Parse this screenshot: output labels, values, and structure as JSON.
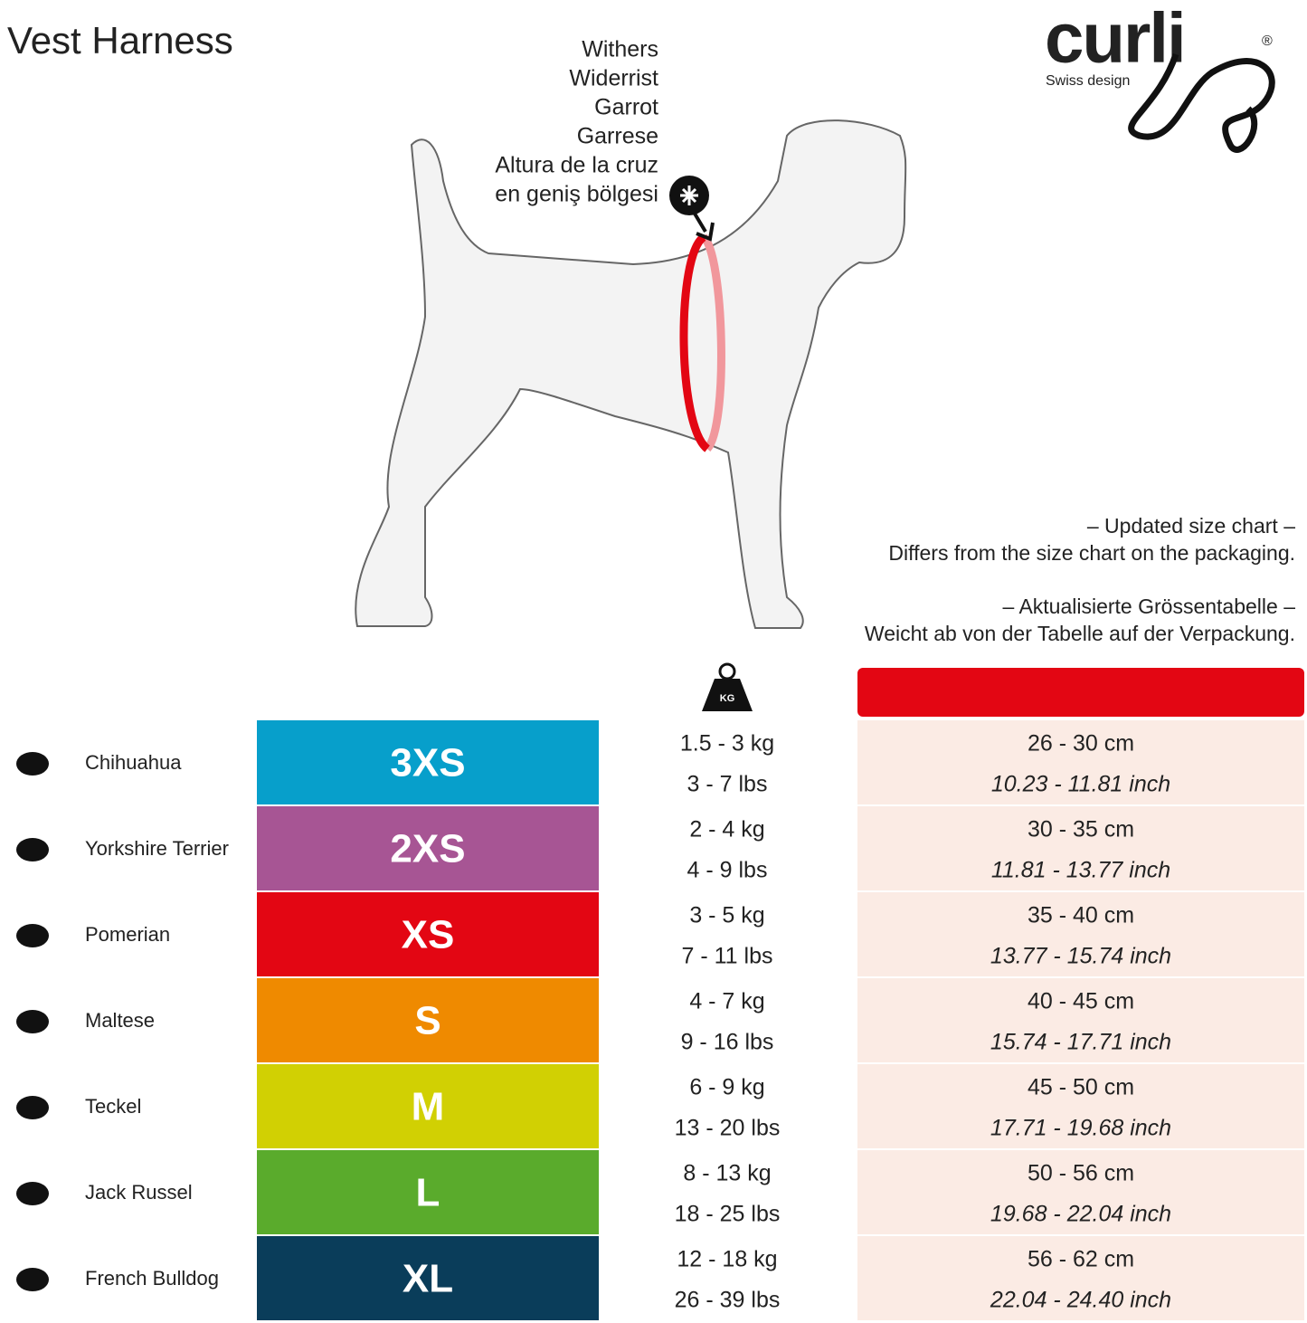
{
  "header": {
    "title": "Vest Harness",
    "logo": {
      "name": "curli",
      "registered": "®",
      "tagline": "Swiss design"
    }
  },
  "withers_labels": [
    "Withers",
    "Widerrist",
    "Garrot",
    "Garrese",
    "Altura de la cruz",
    "en geniş bölgesi"
  ],
  "notes": [
    "– Updated size chart –",
    "Differs from the size chart on the packaging.",
    "– Aktualisierte Grössentabelle –",
    "Weicht ab von der Tabelle auf der Verpackung."
  ],
  "weight_icon_label": "KG",
  "table": {
    "rows": [
      {
        "breed": "Chihuahua",
        "size": "3XS",
        "color": "#079fcb",
        "kg": "1.5 - 3 kg",
        "lbs": "3 - 7 lbs",
        "cm": "26 - 30 cm",
        "inch": "10.23 - 11.81 inch"
      },
      {
        "breed": "Yorkshire Terrier",
        "size": "2XS",
        "color": "#a75594",
        "kg": "2 - 4 kg",
        "lbs": "4 - 9 lbs",
        "cm": "30 - 35 cm",
        "inch": "11.81 - 13.77 inch"
      },
      {
        "breed": "Pomerian",
        "size": "XS",
        "color": "#e30613",
        "kg": "3 - 5 kg",
        "lbs": "7 - 11 lbs",
        "cm": "35 - 40 cm",
        "inch": "13.77 - 15.74 inch"
      },
      {
        "breed": "Maltese",
        "size": "S",
        "color": "#ef8a00",
        "kg": "4 - 7 kg",
        "lbs": "9 - 16 lbs",
        "cm": "40 - 45 cm",
        "inch": "15.74 - 17.71 inch"
      },
      {
        "breed": "Teckel",
        "size": "M",
        "color": "#d1d003",
        "kg": "6 - 9 kg",
        "lbs": "13 - 20 lbs",
        "cm": "45 - 50 cm",
        "inch": "17.71 - 19.68 inch"
      },
      {
        "breed": "Jack Russel",
        "size": "L",
        "color": "#5aab2c",
        "kg": "8 - 13 kg",
        "lbs": "18 - 25 lbs",
        "cm": "50 - 56 cm",
        "inch": "19.68 - 22.04 inch"
      },
      {
        "breed": "French Bulldog",
        "size": "XL",
        "color": "#0a3d5a",
        "kg": "12 - 18 kg",
        "lbs": "26 - 39 lbs",
        "cm": "56 - 62 cm",
        "inch": "22.04 - 24.40 inch"
      }
    ]
  }
}
